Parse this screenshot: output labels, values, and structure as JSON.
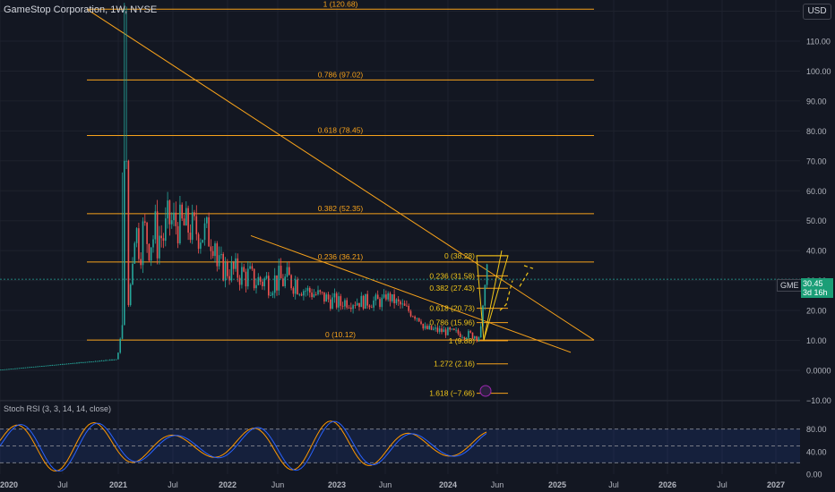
{
  "header": {
    "title": "GameStop Corporation, 1W, NYSE",
    "currency": "USD"
  },
  "price_tag": {
    "symbol": "GME",
    "price": "30.45",
    "countdown": "3d 16h"
  },
  "rsi": {
    "label": "Stoch RSI (3, 3, 14, 14, close)",
    "ticks": [
      "80.00",
      "40.00",
      "0.00"
    ]
  },
  "colors": {
    "background": "#131722",
    "fib": "#f7a21b",
    "bull": "#26a69a",
    "bear": "#ef5350",
    "rsi_k": "#2962ff",
    "rsi_d": "#ff9800",
    "accent": "#f0c419"
  },
  "chart_data": {
    "type": "candlestick",
    "title": "GameStop Corporation, 1W, NYSE",
    "y_ticks": [
      "120.00",
      "110.00",
      "100.00",
      "90.00",
      "80.00",
      "70.00",
      "60.00",
      "50.00",
      "40.00",
      "30.00",
      "20.00",
      "10.00",
      "0.0000",
      "−10.00"
    ],
    "x_ticks": [
      "2020",
      "Jul",
      "2021",
      "Jul",
      "2022",
      "Jun",
      "2023",
      "Jun",
      "2024",
      "Jun",
      "2025",
      "Jul",
      "2026",
      "Jul",
      "2027"
    ],
    "ylim": [
      -13,
      127
    ],
    "fib_retracement_1": {
      "levels": [
        {
          "label": "1 (120.68)",
          "value": 120.68
        },
        {
          "label": "0.786 (97.02)",
          "value": 97.02
        },
        {
          "label": "0.618 (78.45)",
          "value": 78.45
        },
        {
          "label": "0.382 (52.35)",
          "value": 52.35
        },
        {
          "label": "0.236 (36.21)",
          "value": 36.21
        },
        {
          "label": "0 (10.12)",
          "value": 10.12
        }
      ]
    },
    "fib_retracement_2": {
      "levels": [
        {
          "label": "0 (38.28)",
          "value": 38.28
        },
        {
          "label": "0.236 (31.58)",
          "value": 31.58
        },
        {
          "label": "0.382 (27.43)",
          "value": 27.43
        },
        {
          "label": "0.618 (20.73)",
          "value": 20.73
        },
        {
          "label": "0.786 (15.96)",
          "value": 15.96
        },
        {
          "label": "1 (9.88)",
          "value": 9.88
        },
        {
          "label": "1.272 (2.16)",
          "value": 2.16
        },
        {
          "label": "1.618 (−7.66)",
          "value": -7.66
        }
      ]
    },
    "last_price": 30.45
  }
}
